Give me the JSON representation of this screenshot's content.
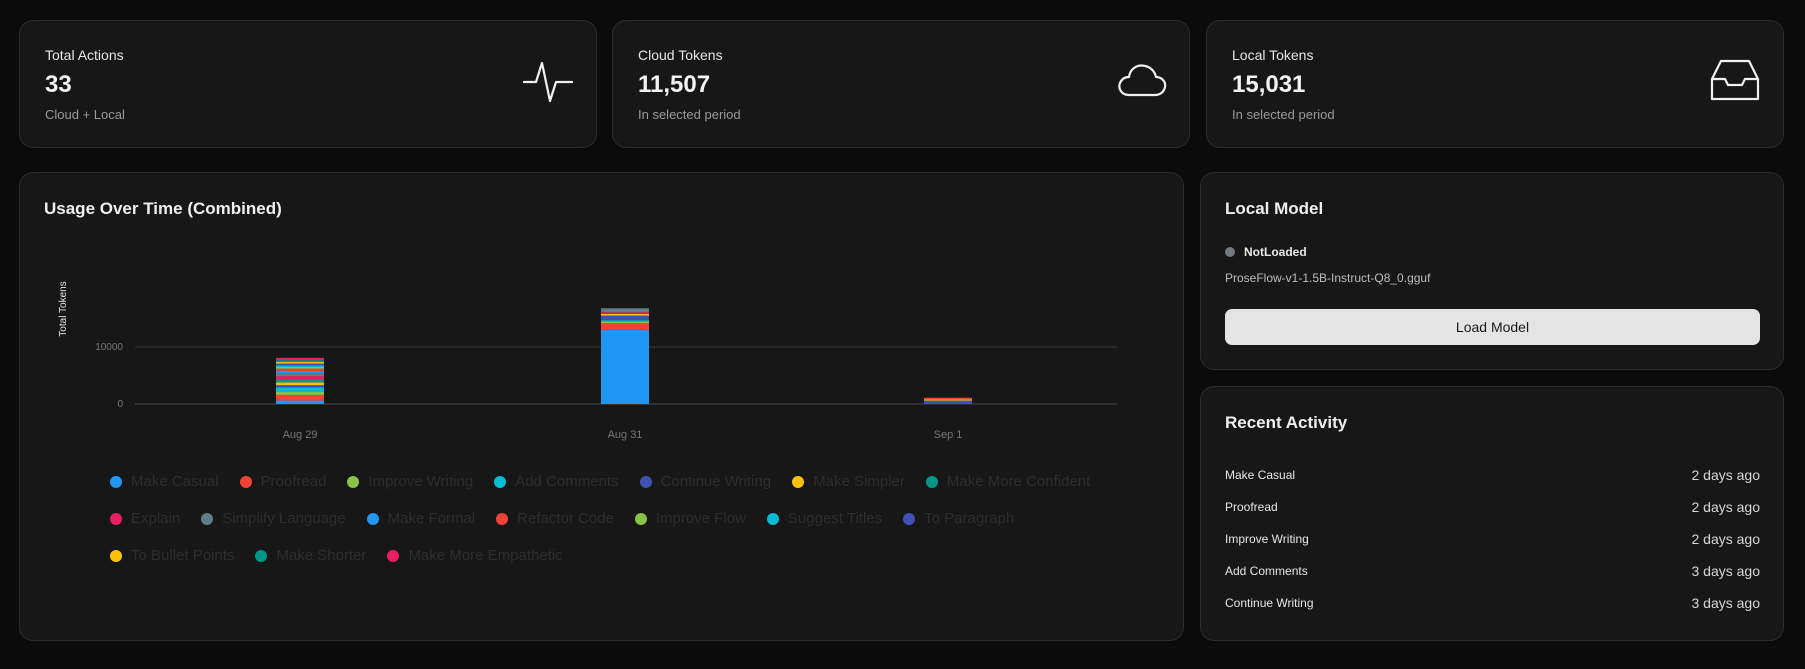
{
  "stats": [
    {
      "title": "Total Actions",
      "value": "33",
      "sub": "Cloud + Local",
      "icon": "activity-icon"
    },
    {
      "title": "Cloud Tokens",
      "value": "11,507",
      "sub": "In selected period",
      "icon": "cloud-icon"
    },
    {
      "title": "Local Tokens",
      "value": "15,031",
      "sub": "In selected period",
      "icon": "inbox-icon"
    }
  ],
  "chart_data": {
    "type": "bar",
    "stacked": true,
    "title": "Usage Over Time (Combined)",
    "xlabel": "",
    "ylabel": "Total Tokens",
    "ylim": [
      0,
      17000
    ],
    "yticks": [
      0,
      10000
    ],
    "categories": [
      "Aug 29",
      "Aug 31",
      "Sep 1"
    ],
    "series": [
      {
        "name": "Make Casual",
        "color": "#2196f3",
        "values": [
          600,
          13000,
          0
        ]
      },
      {
        "name": "Proofread",
        "color": "#f44336",
        "values": [
          1000,
          1200,
          0
        ]
      },
      {
        "name": "Improve Writing",
        "color": "#8bc34a",
        "values": [
          500,
          300,
          0
        ]
      },
      {
        "name": "Add Comments",
        "color": "#00bcd4",
        "values": [
          800,
          200,
          0
        ]
      },
      {
        "name": "Continue Writing",
        "color": "#3f51b5",
        "values": [
          400,
          800,
          600
        ]
      },
      {
        "name": "Make Simpler",
        "color": "#ffc107",
        "values": [
          500,
          300,
          200
        ]
      },
      {
        "name": "Make More Confident",
        "color": "#009688",
        "values": [
          500,
          0,
          0
        ]
      },
      {
        "name": "Explain",
        "color": "#e91e63",
        "values": [
          600,
          300,
          0
        ]
      },
      {
        "name": "Simplify Language",
        "color": "#607d8b",
        "values": [
          500,
          700,
          0
        ]
      },
      {
        "name": "Make Formal",
        "color": "#2196f3",
        "values": [
          400,
          0,
          0
        ]
      },
      {
        "name": "Refactor Code",
        "color": "#f44336",
        "values": [
          400,
          0,
          300
        ]
      },
      {
        "name": "Improve Flow",
        "color": "#8bc34a",
        "values": [
          300,
          0,
          0
        ]
      },
      {
        "name": "Suggest Titles",
        "color": "#00bcd4",
        "values": [
          300,
          0,
          0
        ]
      },
      {
        "name": "To Paragraph",
        "color": "#3f51b5",
        "values": [
          300,
          0,
          0
        ]
      },
      {
        "name": "To Bullet Points",
        "color": "#ffc107",
        "values": [
          300,
          0,
          0
        ]
      },
      {
        "name": "Make Shorter",
        "color": "#009688",
        "values": [
          300,
          0,
          0
        ]
      },
      {
        "name": "Make More Empathetic",
        "color": "#e91e63",
        "values": [
          400,
          0,
          0
        ]
      }
    ]
  },
  "local_model": {
    "title": "Local Model",
    "status": "NotLoaded",
    "file": "ProseFlow-v1-1.5B-Instruct-Q8_0.gguf",
    "button": "Load Model"
  },
  "recent": {
    "title": "Recent Activity",
    "items": [
      {
        "name": "Make Casual",
        "time": "2 days ago"
      },
      {
        "name": "Proofread",
        "time": "2 days ago"
      },
      {
        "name": "Improve Writing",
        "time": "2 days ago"
      },
      {
        "name": "Add Comments",
        "time": "3 days ago"
      },
      {
        "name": "Continue Writing",
        "time": "3 days ago"
      }
    ]
  }
}
